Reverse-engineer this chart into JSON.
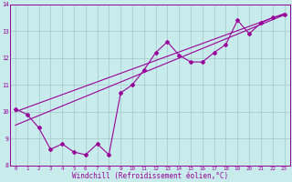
{
  "xlabel": "Windchill (Refroidissement éolien,°C)",
  "bg_color": "#c8ecec",
  "line_color": "#990099",
  "grid_color": "#aacccc",
  "x_data": [
    0,
    1,
    2,
    3,
    4,
    5,
    6,
    7,
    8,
    9,
    10,
    11,
    12,
    13,
    14,
    15,
    16,
    17,
    18,
    19,
    20,
    21,
    22,
    23
  ],
  "y_data": [
    10.1,
    9.9,
    9.4,
    8.6,
    8.8,
    8.5,
    8.4,
    8.8,
    8.4,
    10.7,
    11.0,
    11.55,
    12.2,
    12.6,
    12.1,
    11.85,
    11.85,
    12.2,
    12.5,
    13.4,
    12.9,
    13.3,
    13.5,
    13.6
  ],
  "trend1_x": [
    0,
    23
  ],
  "trend1_y": [
    9.5,
    13.6
  ],
  "trend2_x": [
    0,
    23
  ],
  "trend2_y": [
    10.0,
    13.65
  ],
  "xmin": -0.5,
  "xmax": 23.5,
  "ymin": 8,
  "ymax": 14,
  "yticks": [
    8,
    9,
    10,
    11,
    12,
    13,
    14
  ],
  "ylabel_fontsize": 4.5,
  "xlabel_fontsize": 5.5,
  "tick_fontsize": 4.2
}
